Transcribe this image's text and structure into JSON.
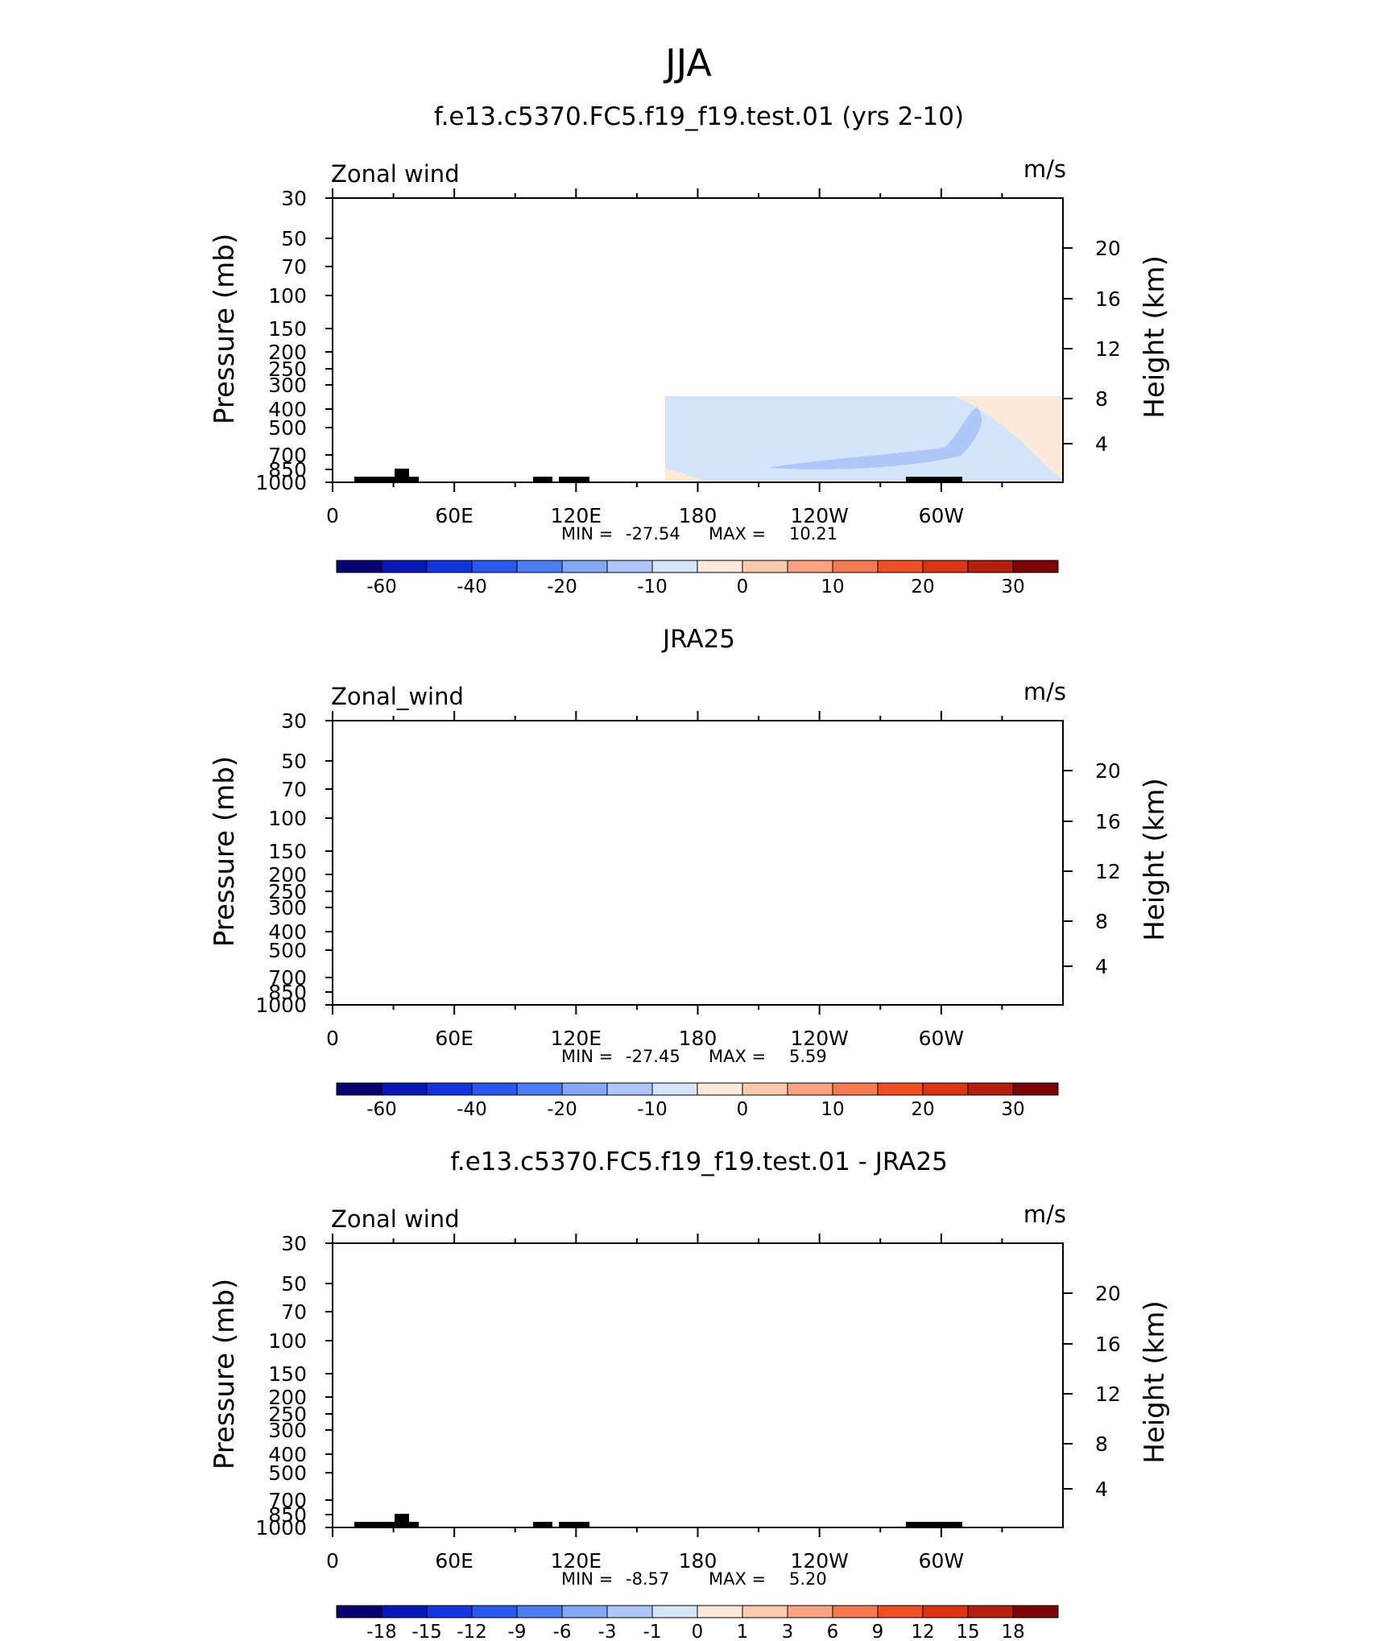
{
  "figure_title": "JJA",
  "chart_data": [
    {
      "type": "heatmap",
      "title": "f.e13.c5370.FC5.f19_f19.test.01 (yrs 2-10)",
      "left_label": "Zonal wind",
      "right_label": "m/s",
      "xlabel": "",
      "ylabel": "Pressure (mb)",
      "ylabel_right": "Height (km)",
      "x_ticks": [
        "0",
        "60E",
        "120E",
        "180",
        "120W",
        "60W"
      ],
      "xlim": [
        0,
        360
      ],
      "y_ticks": [
        "30",
        "50",
        "70",
        "100",
        "150",
        "200",
        "250",
        "300",
        "400",
        "500",
        "700",
        "850",
        "1000"
      ],
      "ylim": [
        1000,
        30
      ],
      "y_ticks_right": [
        "20",
        "16",
        "12",
        "8",
        "4"
      ],
      "min_label": "MIN =",
      "min_value": "-27.54",
      "max_label": "MAX =",
      "max_value": "10.21",
      "colorbar": {
        "labels": [
          "-60",
          "-40",
          "-20",
          "-10",
          "0",
          "10",
          "20",
          "30"
        ],
        "colors": [
          "#08006e",
          "#0a17b8",
          "#1235e0",
          "#2a57ee",
          "#4d7df2",
          "#83a6f5",
          "#aec6f8",
          "#d4e5fb",
          "#fde9d8",
          "#fcc9ae",
          "#f9a382",
          "#f57a52",
          "#ef4f25",
          "#dc3513",
          "#b3200e",
          "#7b0506"
        ]
      }
    },
    {
      "type": "heatmap",
      "title": "JRA25",
      "left_label": "Zonal_wind",
      "right_label": "m/s",
      "xlabel": "",
      "ylabel": "Pressure (mb)",
      "ylabel_right": "Height (km)",
      "x_ticks": [
        "0",
        "60E",
        "120E",
        "180",
        "120W",
        "60W"
      ],
      "xlim": [
        0,
        360
      ],
      "y_ticks": [
        "30",
        "50",
        "70",
        "100",
        "150",
        "200",
        "250",
        "300",
        "400",
        "500",
        "700",
        "850",
        "1000"
      ],
      "ylim": [
        1000,
        30
      ],
      "y_ticks_right": [
        "20",
        "16",
        "12",
        "8",
        "4"
      ],
      "min_label": "MIN =",
      "min_value": "-27.45",
      "max_label": "MAX =",
      "max_value": "5.59",
      "colorbar": {
        "labels": [
          "-60",
          "-40",
          "-20",
          "-10",
          "0",
          "10",
          "20",
          "30"
        ],
        "colors": [
          "#08006e",
          "#0a17b8",
          "#1235e0",
          "#2a57ee",
          "#4d7df2",
          "#83a6f5",
          "#aec6f8",
          "#d4e5fb",
          "#fde9d8",
          "#fcc9ae",
          "#f9a382",
          "#f57a52",
          "#ef4f25",
          "#dc3513",
          "#b3200e",
          "#7b0506"
        ]
      }
    },
    {
      "type": "heatmap",
      "title": "f.e13.c5370.FC5.f19_f19.test.01 - JRA25",
      "left_label": "Zonal wind",
      "right_label": "m/s",
      "xlabel": "",
      "ylabel": "Pressure (mb)",
      "ylabel_right": "Height (km)",
      "x_ticks": [
        "0",
        "60E",
        "120E",
        "180",
        "120W",
        "60W"
      ],
      "xlim": [
        0,
        360
      ],
      "y_ticks": [
        "30",
        "50",
        "70",
        "100",
        "150",
        "200",
        "250",
        "300",
        "400",
        "500",
        "700",
        "850",
        "1000"
      ],
      "ylim": [
        1000,
        30
      ],
      "y_ticks_right": [
        "20",
        "16",
        "12",
        "8",
        "4"
      ],
      "min_label": "MIN =",
      "min_value": "-8.57",
      "max_label": "MAX =",
      "max_value": "5.20",
      "colorbar": {
        "labels": [
          "-18",
          "-15",
          "-12",
          "-9",
          "-6",
          "-3",
          "-1",
          "0",
          "1",
          "3",
          "6",
          "9",
          "12",
          "15",
          "18"
        ],
        "colors": [
          "#08006e",
          "#0a17b8",
          "#1235e0",
          "#2a57ee",
          "#4d7df2",
          "#83a6f5",
          "#aec6f8",
          "#d4e5fb",
          "#fde9d8",
          "#fcc9ae",
          "#f9a382",
          "#f57a52",
          "#ef4f25",
          "#dc3513",
          "#b3200e",
          "#7b0506"
        ]
      }
    }
  ]
}
